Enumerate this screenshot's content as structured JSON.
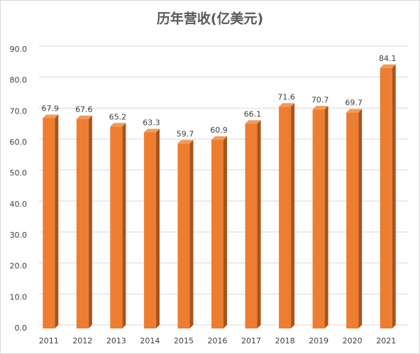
{
  "chart_data": {
    "type": "bar3d",
    "title": "历年营收(亿美元)",
    "categories": [
      "2011",
      "2012",
      "2013",
      "2014",
      "2015",
      "2016",
      "2017",
      "2018",
      "2019",
      "2020",
      "2021"
    ],
    "values": [
      67.9,
      67.6,
      65.2,
      63.3,
      59.7,
      60.9,
      66.1,
      71.6,
      70.7,
      69.7,
      84.1
    ],
    "color": "#ed7d31",
    "side_color": "#a9531b",
    "top_color": "#f19a5c",
    "ylim": [
      0,
      90
    ],
    "yticks": [
      {
        "value": 0,
        "label": "0.0"
      },
      {
        "value": 10,
        "label": "10.0"
      },
      {
        "value": 20,
        "label": "20.0"
      },
      {
        "value": 30,
        "label": "30.0"
      },
      {
        "value": 40,
        "label": "40.0"
      },
      {
        "value": 50,
        "label": "50.0"
      },
      {
        "value": 60,
        "label": "60.0"
      },
      {
        "value": 70,
        "label": "70.0"
      },
      {
        "value": 80,
        "label": "80.0"
      },
      {
        "value": 90,
        "label": "90.0"
      }
    ],
    "grid": true
  }
}
